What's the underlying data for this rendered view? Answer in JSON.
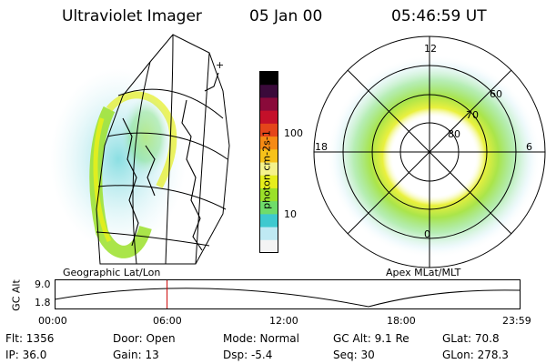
{
  "header": {
    "instrument": "Ultraviolet Imager",
    "date": "05 Jan 00",
    "time": "05:46:59 UT"
  },
  "colorbar": {
    "unit_label": "photon cm-2s-1",
    "tick_labels": [
      "100",
      "10"
    ]
  },
  "panels": {
    "geographic_label": "Geographic Lat/Lon",
    "apex_label": "Apex MLat/MLT"
  },
  "polar_plot": {
    "mlt_labels": [
      "12",
      "18",
      "6",
      "0"
    ],
    "mlat_labels": [
      "60",
      "70",
      "80"
    ]
  },
  "timeline": {
    "axis_label": "GC Alt",
    "y_ticks": [
      "9.0",
      "1.8"
    ],
    "x_ticks": [
      "00:00",
      "06:00",
      "12:00",
      "18:00",
      "23:59"
    ],
    "current_time_fraction": 0.2409
  },
  "footer": {
    "flt": "Flt: 1356",
    "ip": "IP: 36.0",
    "door": "Door: Open",
    "gain": "Gain: 13",
    "mode": "Mode: Normal",
    "dsp": "Dsp:    -5.4",
    "gc_alt": "GC Alt: 9.1 Re",
    "seq": "Seq: 30",
    "glat": "GLat:   70.8",
    "glon": "GLon: 278.3"
  },
  "colors": {
    "foreground": "#000000",
    "marker": "#cc0000",
    "scale": [
      "#f4f4f4",
      "#bfe9f3",
      "#3ec9cf",
      "#6fdc6a",
      "#9be02a",
      "#e6ee1c",
      "#f5f28a",
      "#f7c21a",
      "#f58a14",
      "#e4451a",
      "#c4102a",
      "#8a0a3a",
      "#3a0a3a",
      "#000000"
    ]
  }
}
